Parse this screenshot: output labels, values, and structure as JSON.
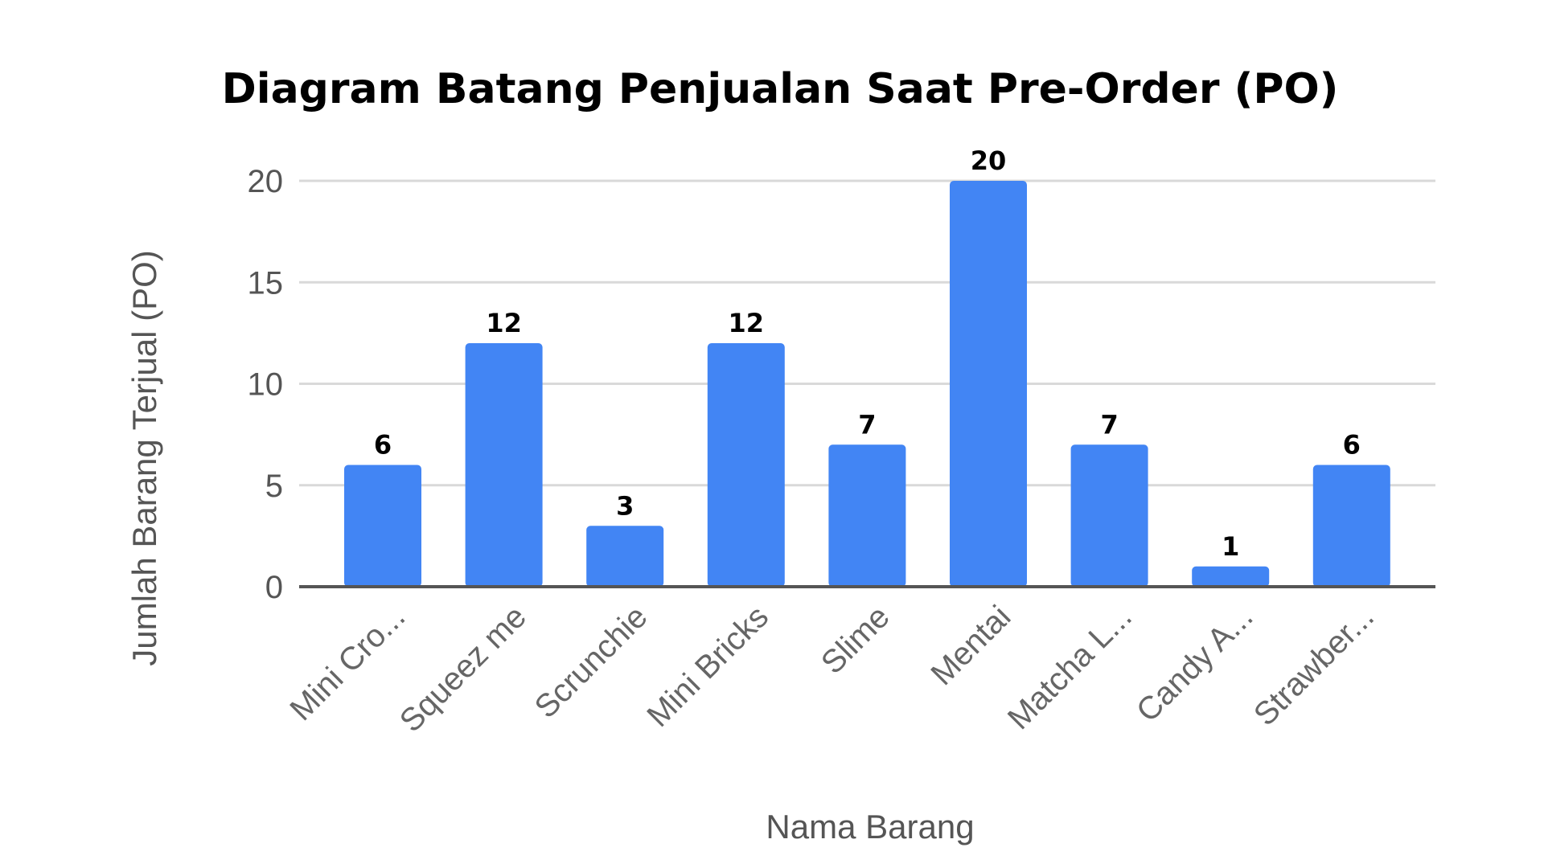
{
  "chart_data": {
    "type": "bar",
    "title": "Diagram Batang Penjualan Saat Pre-Order (PO)",
    "xlabel": "Nama Barang",
    "ylabel": "Jumlah Barang Terjual (PO)",
    "categories": [
      "Mini Cro...",
      "Squeez me",
      "Scrunchie",
      "Mini Bricks",
      "Slime",
      "Mentai",
      "Matcha L...",
      "Candy A...",
      "Strawber..."
    ],
    "values": [
      6,
      12,
      3,
      12,
      7,
      20,
      7,
      1,
      6
    ],
    "data_labels": [
      "6",
      "12",
      "3",
      "12",
      "7",
      "20",
      "7",
      "1",
      "6"
    ],
    "ylim": [
      0,
      20
    ],
    "yticks": [
      "0",
      "5",
      "10",
      "15",
      "20"
    ],
    "grid": true,
    "legend": "none",
    "bar_color": "#4285f4"
  }
}
